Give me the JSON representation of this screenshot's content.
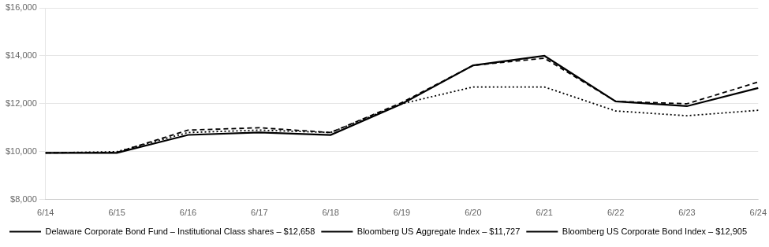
{
  "chart_data": {
    "type": "line",
    "categories": [
      "6/14",
      "6/15",
      "6/16",
      "6/17",
      "6/18",
      "6/19",
      "6/20",
      "6/21",
      "6/22",
      "6/23",
      "6/24"
    ],
    "series": [
      {
        "name": "Delaware Corporate Bond Fund – Institutional Class shares – $12,658",
        "color": "#000000",
        "line_style": "solid",
        "values": [
          9950,
          9950,
          10700,
          10800,
          10700,
          12000,
          13600,
          14000,
          12100,
          11900,
          12658
        ]
      },
      {
        "name": "Bloomberg US Aggregate Index – $11,727",
        "color": "#000000",
        "line_style": "dotted",
        "values": [
          9950,
          10000,
          10800,
          10900,
          10800,
          12000,
          12700,
          12700,
          11700,
          11500,
          11727
        ]
      },
      {
        "name": "Bloomberg US Corporate Bond Index – $12,905",
        "color": "#000000",
        "line_style": "dashed",
        "values": [
          9950,
          9970,
          10900,
          11000,
          10800,
          12050,
          13600,
          13900,
          12100,
          12000,
          12905
        ]
      }
    ],
    "ylim": [
      8000,
      16000
    ],
    "yticks": [
      {
        "value": 8000,
        "label": "$8,000"
      },
      {
        "value": 10000,
        "label": "$10,000"
      },
      {
        "value": 12000,
        "label": "$12,000"
      },
      {
        "value": 14000,
        "label": "$14,000"
      },
      {
        "value": 16000,
        "label": "$16,000"
      }
    ],
    "grid": true,
    "legend": "bottom"
  }
}
